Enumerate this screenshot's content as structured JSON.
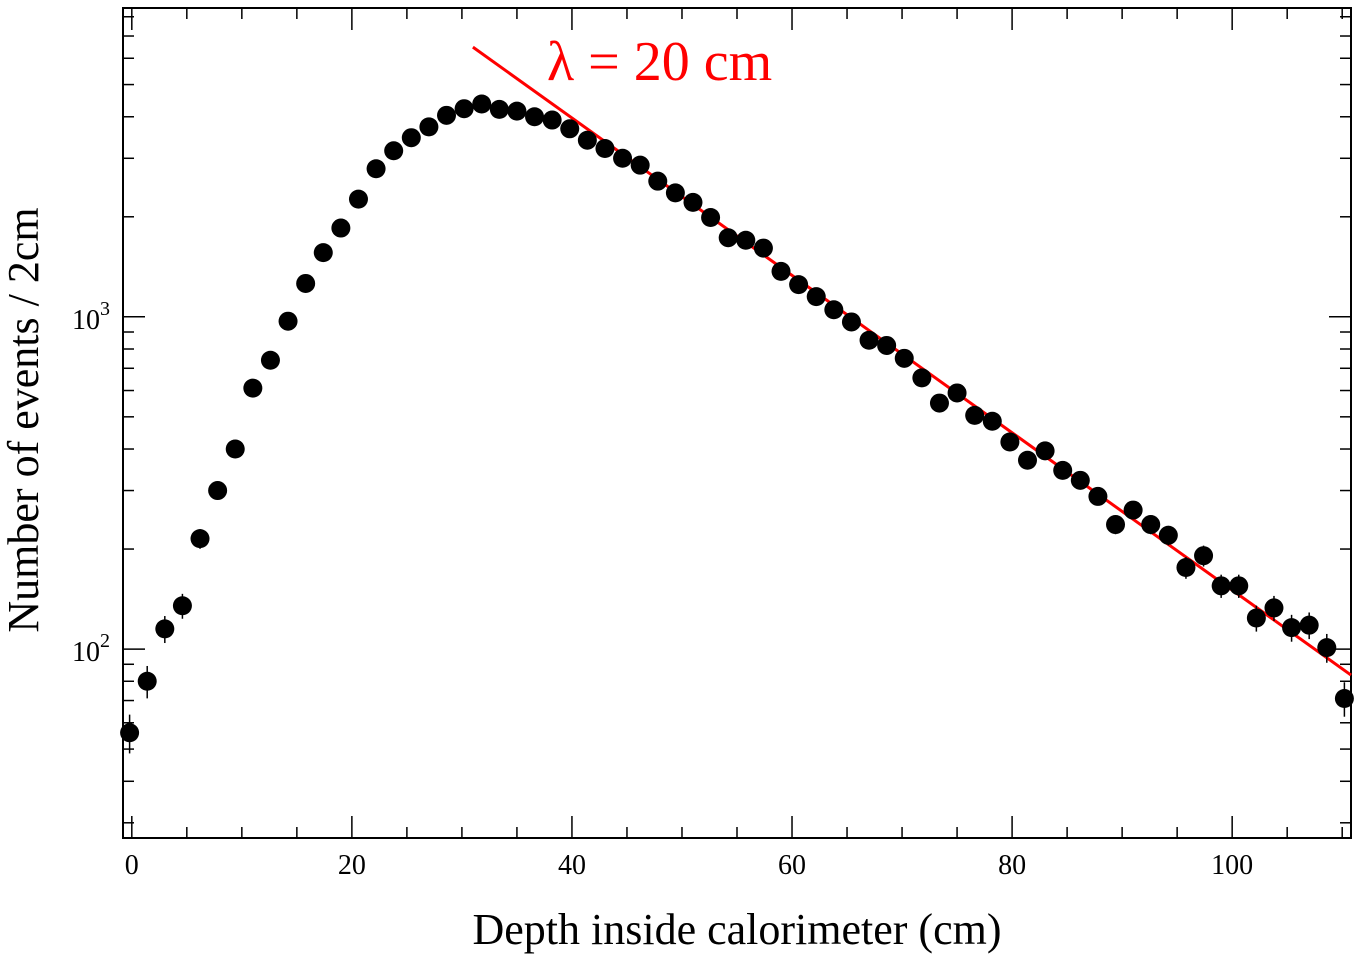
{
  "chart_data": {
    "type": "scatter",
    "xlabel": "Depth inside calorimeter (cm)",
    "ylabel": "Number of events / 2cm",
    "xlim": [
      -0.8,
      110.8
    ],
    "ylim": [
      27,
      8500
    ],
    "y_scale": "log",
    "grid": false,
    "x_ticks": [
      0,
      20,
      40,
      60,
      80,
      100
    ],
    "y_tick_labels": [
      {
        "value": 100,
        "base": "10",
        "exp": "2"
      },
      {
        "value": 1000,
        "base": "10",
        "exp": "3"
      }
    ],
    "series": [
      {
        "marker": "filled-circle",
        "color": "#000000",
        "x": [
          -0.2,
          1.4,
          3.0,
          4.6,
          6.2,
          7.8,
          9.4,
          11.0,
          12.6,
          14.2,
          15.8,
          17.4,
          19.0,
          20.6,
          22.2,
          23.8,
          25.4,
          27.0,
          28.6,
          30.2,
          31.8,
          33.4,
          35.0,
          36.6,
          38.2,
          39.8,
          41.4,
          43.0,
          44.6,
          46.2,
          47.8,
          49.4,
          51.0,
          52.6,
          54.2,
          55.8,
          57.4,
          59.0,
          60.6,
          62.2,
          63.8,
          65.4,
          67.0,
          68.6,
          70.2,
          71.8,
          73.4,
          75.0,
          76.6,
          78.2,
          79.8,
          81.4,
          83.0,
          84.6,
          86.2,
          87.8,
          89.4,
          91.0,
          92.6,
          94.2,
          95.8,
          97.4,
          99.0,
          100.6,
          102.2,
          103.8,
          105.4,
          107.0,
          108.6,
          110.2
        ],
        "y": [
          56,
          80,
          115,
          135,
          215,
          300,
          400,
          610,
          740,
          970,
          1260,
          1560,
          1850,
          2260,
          2790,
          3160,
          3460,
          3730,
          4040,
          4230,
          4370,
          4210,
          4160,
          4000,
          3910,
          3680,
          3400,
          3210,
          3000,
          2860,
          2560,
          2360,
          2210,
          1990,
          1730,
          1700,
          1610,
          1370,
          1250,
          1150,
          1050,
          965,
          850,
          820,
          750,
          655,
          550,
          590,
          505,
          485,
          420,
          370,
          395,
          345,
          322,
          288,
          237,
          262,
          237,
          220,
          176,
          191,
          155,
          155,
          124,
          133,
          116,
          118,
          101,
          71
        ]
      }
    ],
    "fit": {
      "color": "#ff0000",
      "x": [
        31.0,
        110.8
      ],
      "y": [
        6480,
        83.5
      ],
      "annotation": "λ = 20 cm"
    }
  }
}
